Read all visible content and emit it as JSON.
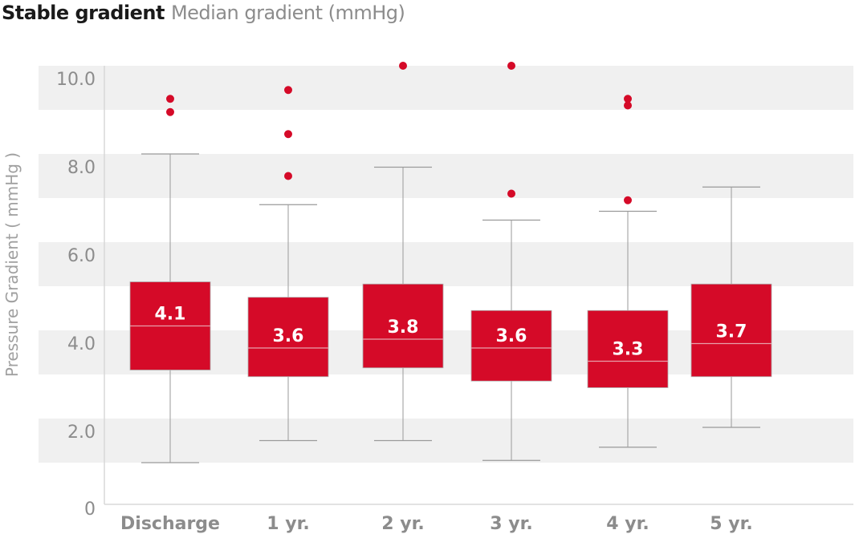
{
  "chart_data": {
    "type": "box",
    "title": "Stable gradient",
    "subtitle": "Median gradient (mmHg)",
    "ylabel": "Pressure Gradient ( mmHg )",
    "xlabel": "",
    "ylim": [
      0,
      10
    ],
    "yticks": [
      0,
      2,
      4,
      6,
      8,
      10
    ],
    "ytick_labels": [
      "0",
      "2.0",
      "4.0",
      "6.0",
      "8.0",
      "10.0"
    ],
    "grid": "alternating horizontal bands",
    "categories": [
      "Discharge",
      "1 yr.",
      "2 yr.",
      "3 yr.",
      "4 yr.",
      "5 yr."
    ],
    "boxes": [
      {
        "min": 1.0,
        "q1": 3.1,
        "median": 4.1,
        "q3": 5.1,
        "max": 8.0,
        "outliers": [
          9.25,
          8.95
        ],
        "label": "4.1"
      },
      {
        "min": 1.5,
        "q1": 2.95,
        "median": 3.6,
        "q3": 4.75,
        "max": 6.85,
        "outliers": [
          9.45,
          8.45,
          7.5
        ],
        "label": "3.6"
      },
      {
        "min": 1.5,
        "q1": 3.15,
        "median": 3.8,
        "q3": 5.05,
        "max": 7.7,
        "outliers": [
          10.0
        ],
        "label": "3.8"
      },
      {
        "min": 1.05,
        "q1": 2.85,
        "median": 3.6,
        "q3": 4.45,
        "max": 6.5,
        "outliers": [
          10.0,
          7.1
        ],
        "label": "3.6"
      },
      {
        "min": 1.35,
        "q1": 2.7,
        "median": 3.3,
        "q3": 4.45,
        "max": 6.7,
        "outliers": [
          9.25,
          9.1,
          6.95
        ],
        "label": "3.3"
      },
      {
        "min": 1.8,
        "q1": 2.95,
        "median": 3.7,
        "q3": 5.05,
        "max": 7.25,
        "outliers": [],
        "label": "3.7"
      }
    ],
    "colors": {
      "box": "#d50a28",
      "whisker": "#9a9a9a",
      "median": "#e8a0aa",
      "band": "#f0f0f0",
      "outlier": "#d50a28"
    }
  }
}
